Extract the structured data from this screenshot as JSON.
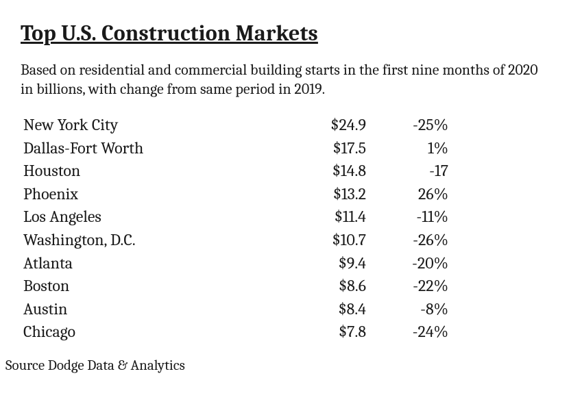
{
  "title": "Top U.S. Construction Markets",
  "subtitle": "Based on residential and commercial building starts in the first nine months of 2020 in billions, with change from same period in 2019.",
  "table": {
    "type": "table",
    "columns": [
      "city",
      "amount_billions_usd",
      "change_pct"
    ],
    "rows": [
      {
        "city": "New York City",
        "amount": "$24.9",
        "change": "-25%"
      },
      {
        "city": "Dallas-Fort Worth",
        "amount": "$17.5",
        "change": "1%"
      },
      {
        "city": "Houston",
        "amount": "$14.8",
        "change": "-17"
      },
      {
        "city": "Phoenix",
        "amount": "$13.2",
        "change": "26%"
      },
      {
        "city": "Los Angeles",
        "amount": "$11.4",
        "change": "-11%"
      },
      {
        "city": "Washington, D.C.",
        "amount": "$10.7",
        "change": "-26%"
      },
      {
        "city": "Atlanta",
        "amount": "$9.4",
        "change": "-20%"
      },
      {
        "city": "Boston",
        "amount": "$8.6",
        "change": "-22%"
      },
      {
        "city": "Austin",
        "amount": "$8.4",
        "change": "-8%"
      },
      {
        "city": "Chicago",
        "amount": "$7.8",
        "change": "-24%"
      }
    ]
  },
  "source": "Source Dodge Data & Analytics",
  "colors": {
    "background": "#ffffff",
    "text": "#1a1a1a"
  },
  "typography": {
    "title_fontsize_pt": 24,
    "subtitle_fontsize_pt": 16,
    "table_fontsize_pt": 18,
    "source_fontsize_pt": 16,
    "font_family": "Cambria / Georgia serif"
  }
}
